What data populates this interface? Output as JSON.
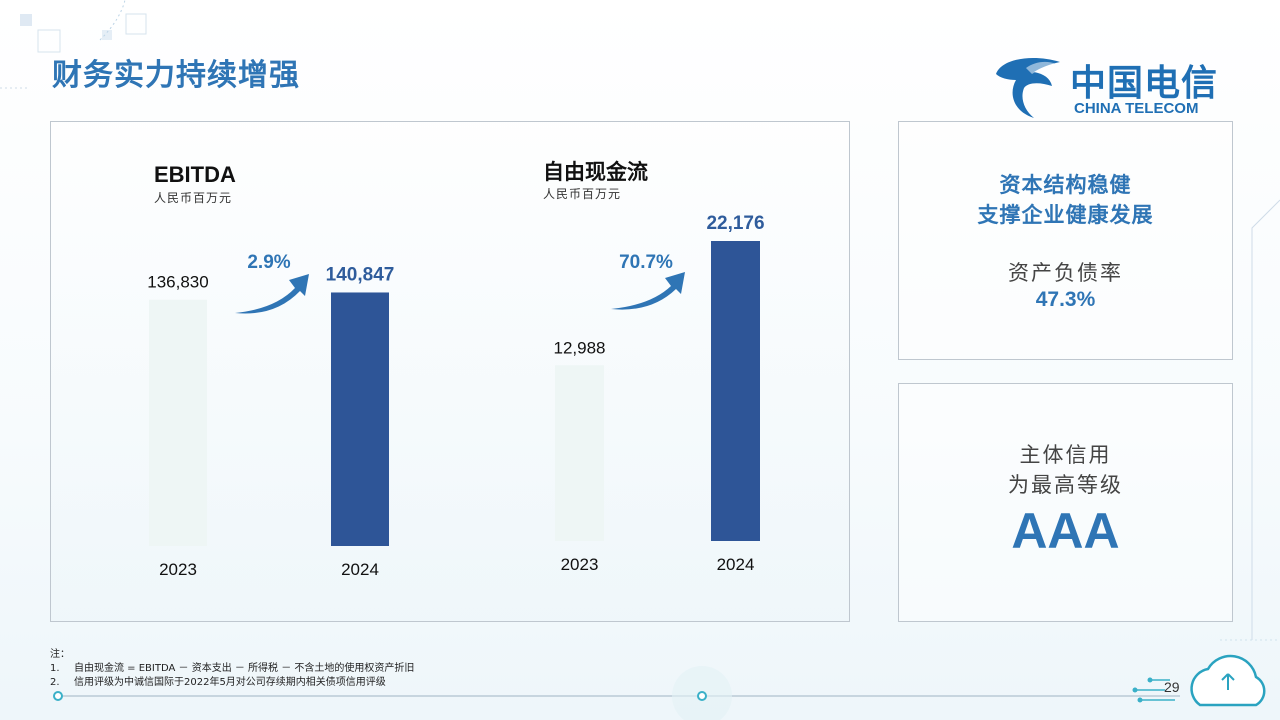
{
  "slide": {
    "title": "财务实力持续增强",
    "page_number": "29"
  },
  "logo": {
    "cn": "中国电信",
    "en": "CHINA TELECOM"
  },
  "chart_data": [
    {
      "type": "bar",
      "title": "EBITDA",
      "subtitle": "人民币百万元",
      "categories": [
        "2023",
        "2024"
      ],
      "values": [
        136830,
        140847
      ],
      "value_labels": [
        "136,830",
        "140,847"
      ],
      "growth_label": "2.9%",
      "colors": [
        "#eef6f5",
        "#2e5597"
      ],
      "ylim": [
        0,
        150000
      ]
    },
    {
      "type": "bar",
      "title": "自由现金流",
      "subtitle": "人民币百万元",
      "categories": [
        "2023",
        "2024"
      ],
      "values": [
        12988,
        22176
      ],
      "value_labels": [
        "12,988",
        "22,176"
      ],
      "growth_label": "70.7%",
      "colors": [
        "#eef6f5",
        "#2e5597"
      ],
      "ylim": [
        0,
        22176
      ]
    }
  ],
  "side_top": {
    "heading_line1": "资本结构稳健",
    "heading_line2": "支撑企业健康发展",
    "label": "资产负债率",
    "value": "47.3%"
  },
  "side_bottom": {
    "line1": "主体信用",
    "line2": "为最高等级",
    "rating": "AAA"
  },
  "notes": {
    "heading": "注：",
    "items": [
      {
        "num": "1.",
        "text": "自由现金流 = EBITDA － 资本支出 － 所得税 － 不含土地的使用权资产折旧"
      },
      {
        "num": "2.",
        "text": "信用评级为中诚信国际于2022年5月对公司存续期内相关债项信用评级"
      }
    ]
  },
  "colors": {
    "accent": "#2f75b5",
    "bar_dark": "#2e5597",
    "bar_light": "#eef6f5"
  }
}
